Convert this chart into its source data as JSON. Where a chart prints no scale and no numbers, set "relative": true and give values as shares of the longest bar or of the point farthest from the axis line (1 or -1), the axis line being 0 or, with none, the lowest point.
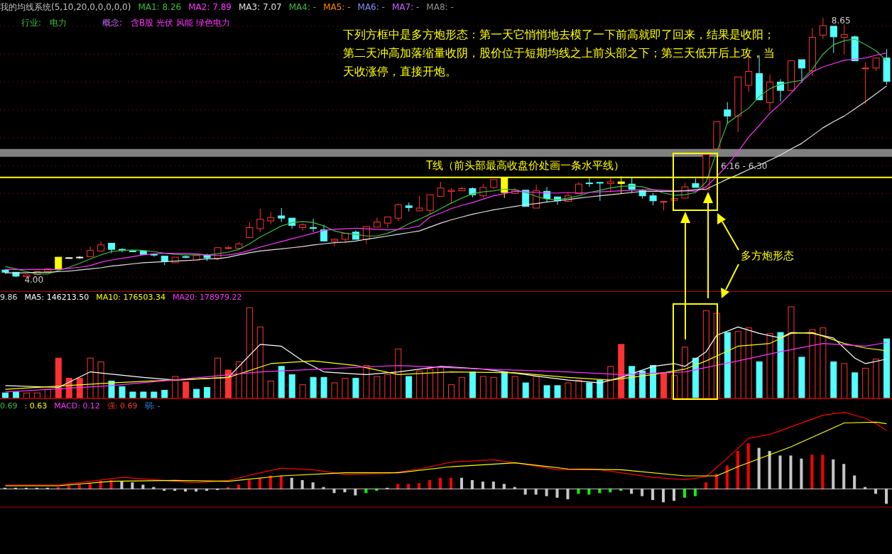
{
  "chart_data": [
    {
      "type": "candlestick",
      "title": "我的均线系统(5,10,20,0,0,0,0,0)",
      "categories": [
        null,
        null,
        null,
        null,
        null,
        null,
        null,
        null,
        null,
        null,
        null,
        null,
        null,
        null,
        null,
        null,
        null,
        null,
        null,
        null,
        null,
        null,
        null,
        null,
        null,
        null,
        null,
        null,
        null,
        null,
        null,
        null,
        null,
        null,
        null,
        null,
        null,
        null,
        null,
        null,
        null,
        null,
        null,
        null,
        null,
        null,
        null,
        null,
        null,
        null,
        null,
        null,
        null,
        null,
        null,
        null,
        null,
        null,
        null,
        null,
        null,
        null,
        null,
        null,
        null,
        null,
        null,
        null,
        null,
        null,
        null,
        null,
        null,
        null,
        null,
        null,
        null,
        null,
        null,
        null,
        null,
        null,
        null,
        null
      ],
      "ohlc": [
        [
          4.13,
          4.14,
          4.06,
          4.09
        ],
        [
          4.09,
          4.09,
          4.0,
          4.02
        ],
        [
          4.01,
          4.05,
          4.0,
          4.04
        ],
        [
          4.05,
          4.11,
          4.04,
          4.1
        ],
        [
          4.1,
          4.16,
          4.09,
          4.15
        ],
        [
          4.36,
          4.36,
          4.14,
          4.14
        ],
        [
          4.35,
          4.36,
          4.34,
          4.35
        ],
        [
          4.36,
          4.38,
          4.33,
          4.36
        ],
        [
          4.37,
          4.55,
          4.37,
          4.48
        ],
        [
          4.47,
          4.64,
          4.47,
          4.58
        ],
        [
          4.61,
          4.61,
          4.43,
          4.5
        ],
        [
          4.5,
          4.52,
          4.45,
          4.48
        ],
        [
          4.47,
          4.48,
          4.45,
          4.46
        ],
        [
          4.47,
          4.47,
          4.4,
          4.41
        ],
        [
          4.41,
          4.43,
          4.37,
          4.4
        ],
        [
          4.38,
          4.38,
          4.22,
          4.28
        ],
        [
          4.26,
          4.36,
          4.26,
          4.36
        ],
        [
          4.37,
          4.39,
          4.34,
          4.36
        ],
        [
          4.31,
          4.39,
          4.31,
          4.39
        ],
        [
          4.4,
          4.42,
          4.29,
          4.35
        ],
        [
          4.34,
          4.53,
          4.31,
          4.53
        ],
        [
          4.53,
          4.56,
          4.5,
          4.53
        ],
        [
          4.52,
          4.63,
          4.52,
          4.6
        ],
        [
          4.71,
          4.99,
          4.71,
          4.89
        ],
        [
          4.87,
          5.23,
          4.81,
          5.04
        ],
        [
          5.01,
          5.17,
          4.95,
          5.07
        ],
        [
          5.1,
          5.24,
          4.99,
          5.06
        ],
        [
          5.06,
          5.06,
          4.87,
          4.93
        ],
        [
          4.89,
          4.97,
          4.84,
          4.94
        ],
        [
          4.89,
          5.05,
          4.81,
          4.88
        ],
        [
          4.85,
          4.94,
          4.65,
          4.65
        ],
        [
          4.65,
          4.7,
          4.56,
          4.68
        ],
        [
          4.68,
          4.79,
          4.62,
          4.79
        ],
        [
          4.81,
          4.84,
          4.68,
          4.68
        ],
        [
          4.68,
          4.91,
          4.6,
          4.91
        ],
        [
          4.9,
          5.07,
          4.9,
          4.99
        ],
        [
          4.97,
          5.08,
          4.89,
          5.08
        ],
        [
          5.06,
          5.32,
          5.01,
          5.3
        ],
        [
          5.28,
          5.34,
          5.18,
          5.25
        ],
        [
          5.19,
          5.46,
          5.19,
          5.24
        ],
        [
          5.2,
          5.48,
          5.13,
          5.48
        ],
        [
          5.45,
          5.71,
          5.45,
          5.6
        ],
        [
          5.54,
          5.6,
          5.32,
          5.56
        ],
        [
          5.55,
          5.62,
          5.55,
          5.59
        ],
        [
          5.59,
          5.61,
          5.43,
          5.48
        ],
        [
          5.46,
          5.67,
          5.43,
          5.61
        ],
        [
          5.61,
          5.75,
          5.58,
          5.75
        ],
        [
          5.79,
          5.8,
          5.42,
          5.52
        ],
        [
          5.5,
          5.6,
          5.5,
          5.56
        ],
        [
          5.56,
          5.56,
          5.27,
          5.27
        ],
        [
          5.24,
          5.66,
          5.24,
          5.55
        ],
        [
          5.54,
          5.62,
          5.34,
          5.41
        ],
        [
          5.44,
          5.44,
          5.3,
          5.37
        ],
        [
          5.36,
          5.5,
          5.36,
          5.46
        ],
        [
          5.5,
          5.7,
          5.5,
          5.67
        ],
        [
          5.69,
          5.78,
          5.62,
          5.68
        ],
        [
          5.7,
          5.7,
          5.37,
          5.69
        ],
        [
          5.68,
          5.78,
          5.52,
          5.71
        ],
        [
          5.71,
          5.81,
          5.5,
          5.68
        ],
        [
          5.67,
          5.78,
          5.51,
          5.58
        ],
        [
          5.55,
          5.58,
          5.41,
          5.46
        ],
        [
          5.46,
          5.51,
          5.29,
          5.37
        ],
        [
          5.36,
          5.36,
          5.2,
          5.36
        ],
        [
          5.38,
          5.42,
          5.37,
          5.41
        ],
        [
          5.42,
          5.69,
          5.42,
          5.62
        ],
        [
          5.68,
          5.77,
          5.61,
          5.61
        ],
        [
          5.57,
          6.2,
          5.56,
          6.2
        ],
        [
          6.3,
          6.79,
          6.3,
          6.79
        ],
        [
          7.0,
          7.14,
          6.75,
          6.89
        ],
        [
          6.89,
          7.59,
          6.6,
          7.59
        ],
        [
          7.44,
          7.97,
          7.32,
          7.69
        ],
        [
          7.65,
          7.98,
          7.18,
          7.18
        ],
        [
          7.13,
          7.64,
          6.98,
          7.5
        ],
        [
          7.5,
          7.55,
          7.15,
          7.35
        ],
        [
          7.35,
          7.89,
          7.33,
          7.88
        ],
        [
          7.9,
          7.9,
          7.48,
          7.75
        ],
        [
          7.7,
          8.47,
          7.61,
          8.3
        ],
        [
          8.34,
          8.65,
          8.27,
          8.51
        ],
        [
          8.5,
          8.5,
          8.02,
          8.31
        ],
        [
          8.3,
          8.53,
          8.0,
          8.35
        ],
        [
          8.31,
          8.33,
          7.88,
          7.88
        ],
        [
          7.74,
          7.85,
          7.1,
          7.75
        ],
        [
          7.75,
          7.93,
          7.7,
          7.93
        ],
        [
          7.93,
          8.09,
          7.45,
          7.51
        ]
      ],
      "colors": [
        "#54ffff",
        "#54ffff",
        "#ff3232",
        "#ff3232",
        "#ff3232",
        "#ffff00",
        "#ffffff",
        "#ffffff",
        "#ff3232",
        "#ff3232",
        "#54ffff",
        "#54ffff",
        "#54ffff",
        "#54ffff",
        "#54ffff",
        "#54ffff",
        "#ff3232",
        "#54ffff",
        "#ff3232",
        "#54ffff",
        "#ff3232",
        "#ff3232",
        "#ff3232",
        "#ff3232",
        "#ff3232",
        "#ff3232",
        "#54ffff",
        "#54ffff",
        "#ff3232",
        "#54ffff",
        "#54ffff",
        "#ff3232",
        "#ff3232",
        "#54ffff",
        "#ff3232",
        "#ff3232",
        "#ff3232",
        "#ff3232",
        "#54ffff",
        "#ff3232",
        "#ff3232",
        "#ff3232",
        "#ff3232",
        "#ff3232",
        "#54ffff",
        "#ff3232",
        "#ff3232",
        "#ffff00",
        "#ff3232",
        "#54ffff",
        "#ff3232",
        "#54ffff",
        "#54ffff",
        "#ff3232",
        "#ff3232",
        "#54ffff",
        "#54ffff",
        "#ff3232",
        "#ffff00",
        "#54ffff",
        "#54ffff",
        "#54ffff",
        "#ff3232",
        "#ff3232",
        "#ff3232",
        "#54ffff",
        "#ff3232",
        "#ff3232",
        "#54ffff",
        "#ff3232",
        "#ff3232",
        "#54ffff",
        "#ff3232",
        "#54ffff",
        "#ff3232",
        "#54ffff",
        "#ff3232",
        "#ff3232",
        "#54ffff",
        "#ff3232",
        "#54ffff",
        "#ff3232",
        "#ff3232",
        "#54ffff"
      ],
      "series": [
        {
          "type": "line",
          "name": "MA1: 8.26",
          "color": "#3cbe3c",
          "values": [
            4.19,
            4.15,
            4.1,
            4.06,
            4.06,
            4.12,
            4.18,
            4.25,
            4.33,
            4.4,
            4.46,
            4.48,
            4.49,
            4.48,
            4.46,
            4.43,
            4.41,
            4.4,
            4.4,
            4.4,
            4.42,
            4.45,
            4.5,
            4.6,
            4.72,
            4.82,
            4.92,
            4.98,
            5.0,
            4.98,
            4.92,
            4.83,
            4.79,
            4.77,
            4.74,
            4.74,
            4.79,
            4.86,
            4.96,
            5.04,
            5.13,
            5.23,
            5.33,
            5.42,
            5.5,
            5.53,
            5.55,
            5.58,
            5.57,
            5.52,
            5.45,
            5.4,
            5.39,
            5.42,
            5.46,
            5.52,
            5.56,
            5.6,
            5.63,
            5.64,
            5.62,
            5.57,
            5.51,
            5.47,
            5.48,
            5.52,
            5.71,
            6.25,
            6.76,
            6.9,
            7.03,
            7.24,
            7.38,
            7.46,
            7.5,
            7.53,
            7.73,
            8.0,
            8.17,
            8.24,
            8.27,
            8.17,
            8.06,
            7.88
          ]
        },
        {
          "type": "line",
          "name": "MA2: 7.89",
          "color": "#ff33ff",
          "values": [
            4.14,
            4.14,
            4.14,
            4.14,
            4.14,
            4.14,
            4.16,
            4.18,
            4.21,
            4.27,
            4.31,
            4.34,
            4.37,
            4.4,
            4.42,
            4.43,
            4.43,
            4.43,
            4.42,
            4.4,
            4.39,
            4.4,
            4.43,
            4.48,
            4.54,
            4.59,
            4.64,
            4.69,
            4.74,
            4.79,
            4.84,
            4.86,
            4.87,
            4.88,
            4.87,
            4.86,
            4.85,
            4.86,
            4.88,
            4.92,
            5.08,
            5.15,
            5.23,
            5.29,
            5.34,
            5.4,
            5.46,
            5.5,
            5.54,
            5.53,
            5.52,
            5.51,
            5.51,
            5.52,
            5.51,
            5.52,
            5.53,
            5.54,
            5.55,
            5.56,
            5.57,
            5.57,
            5.56,
            5.55,
            5.55,
            5.54,
            5.62,
            5.81,
            6.01,
            6.25,
            6.51,
            6.72,
            6.94,
            7.11,
            7.3,
            7.51,
            7.68,
            7.77,
            7.83,
            7.89,
            7.91,
            7.93,
            7.98,
            8.02
          ]
        },
        {
          "type": "line",
          "name": "MA3: 7.07",
          "color": "#e0e0e0",
          "values": [
            4.08,
            4.08,
            4.08,
            4.09,
            4.09,
            4.1,
            4.11,
            4.13,
            4.15,
            4.17,
            4.2,
            4.22,
            4.24,
            4.26,
            4.27,
            4.28,
            4.29,
            4.3,
            4.31,
            4.33,
            4.33,
            4.36,
            4.4,
            4.44,
            4.47,
            4.49,
            4.51,
            4.53,
            4.55,
            4.58,
            4.6,
            4.62,
            4.63,
            4.65,
            4.68,
            4.71,
            4.74,
            4.77,
            4.8,
            4.83,
            4.9,
            4.97,
            5.03,
            5.08,
            5.13,
            5.17,
            5.21,
            5.24,
            5.27,
            5.3,
            5.32,
            5.35,
            5.37,
            5.39,
            5.42,
            5.44,
            5.46,
            5.48,
            5.5,
            5.52,
            5.54,
            5.54,
            5.54,
            5.54,
            5.55,
            5.57,
            5.58,
            5.67,
            5.76,
            5.84,
            5.93,
            6.01,
            6.1,
            6.19,
            6.3,
            6.4,
            6.54,
            6.68,
            6.79,
            6.89,
            7.02,
            7.15,
            7.29,
            7.43
          ]
        }
      ],
      "ylim": [
        3.75,
        8.97
      ],
      "yticks": [
        {
          "value": 4,
          "label": null
        },
        {
          "value": 4.5,
          "label": null
        },
        {
          "value": 5,
          "label": null
        },
        {
          "value": 5.5,
          "label": null
        },
        {
          "value": 6,
          "label": null
        },
        {
          "value": 6.5,
          "label": null
        },
        {
          "value": 7,
          "label": null
        },
        {
          "value": 7.5,
          "label": null
        },
        {
          "value": 8,
          "label": null
        },
        {
          "value": 8.5,
          "label": null
        }
      ],
      "tick_labels": false,
      "grid": "y",
      "legend": "top left",
      "ref_lines": [
        {
          "axis": "y",
          "value": 5.79,
          "label": "T线（前头部最高收盘价处画一条水平线）",
          "color": "#ffff00"
        }
      ],
      "bands": [
        {
          "axis": "y",
          "from": 6.16,
          "to": 6.3,
          "label": "6.16 - 6.30",
          "color": "#808080"
        }
      ],
      "annotations": [
        "MA4: -",
        "MA5: -",
        "MA6: -",
        "MA7: -",
        "MA8: -",
        "行业:",
        "电力",
        "概念:",
        "含B股 光伏 风能 绿色电力",
        "下列方框中是多方炮形态：第一天它悄悄地去模了一下前高就即了回来，结果是收阳；第二天冲高加落缩量收阴，股价位于短期均线之上前头部之下；第三天低开后上攻，当天收涨停，直接开炮。",
        "多方炮形态",
        "8.65",
        "4.00"
      ]
    },
    {
      "type": "bar",
      "relative": true,
      "legend": "top left",
      "categories": [
        null,
        null,
        null,
        null,
        null,
        null,
        null,
        null,
        null,
        null,
        null,
        null,
        null,
        null,
        null,
        null,
        null,
        null,
        null,
        null,
        null,
        null,
        null,
        null,
        null,
        null,
        null,
        null,
        null,
        null,
        null,
        null,
        null,
        null,
        null,
        null,
        null,
        null,
        null,
        null,
        null,
        null,
        null,
        null,
        null,
        null,
        null,
        null,
        null,
        null,
        null,
        null,
        null,
        null,
        null,
        null,
        null,
        null,
        null,
        null,
        null,
        null,
        null,
        null,
        null,
        null,
        null,
        null,
        null,
        null,
        null,
        null,
        null,
        null,
        null,
        null,
        null,
        null,
        null,
        null,
        null,
        null,
        null,
        null
      ],
      "series": [
        {
          "type": "bar",
          "values": [
            0.06,
            0.07,
            0.06,
            0.06,
            0.1,
            0.44,
            0.22,
            0.22,
            0.44,
            0.4,
            0.19,
            0.13,
            0.07,
            0.07,
            0.07,
            0.09,
            0.24,
            0.18,
            0.1,
            0.12,
            0.44,
            0.31,
            0.4,
            0.99,
            0.78,
            0.19,
            0.35,
            0.26,
            0.15,
            0.23,
            0.23,
            0.17,
            0.22,
            0.22,
            0.36,
            0.24,
            0.26,
            0.54,
            0.24,
            0.3,
            0.32,
            0.34,
            0.15,
            0.23,
            0.29,
            0.24,
            0.23,
            0.29,
            0.24,
            0.17,
            0.24,
            0.14,
            0.14,
            0.17,
            0.2,
            0.17,
            0.2,
            0.35,
            0.59,
            0.35,
            0.3,
            0.36,
            0.28,
            0.25,
            0.56,
            0.44,
            0.96,
            0.93,
            0.72,
            0.73,
            0.77,
            0.4,
            0.71,
            0.72,
            1,
            0.45,
            0.75,
            0.77,
            0.4,
            0.38,
            0.28,
            0.33,
            0.43,
            0.65
          ],
          "colors": [
            "#54ffff",
            "#54ffff",
            "#ff3232",
            "#ff3232",
            "#ff3232",
            "#ff3232",
            "#ff3232",
            "#ff3232",
            "#ff3232",
            "#ff3232",
            "#54ffff",
            "#54ffff",
            "#54ffff",
            "#54ffff",
            "#54ffff",
            "#54ffff",
            "#ff3232",
            "#ff3232",
            "#54ffff",
            "#54ffff",
            "#ff3232",
            "#ff3232",
            "#ff3232",
            "#ff3232",
            "#ff3232",
            "#ff3232",
            "#54ffff",
            "#54ffff",
            "#ff3232",
            "#54ffff",
            "#54ffff",
            "#ff3232",
            "#ff3232",
            "#54ffff",
            "#ff3232",
            "#ff3232",
            "#ff3232",
            "#ff3232",
            "#54ffff",
            "#ff3232",
            "#ff3232",
            "#ff3232",
            "#ff3232",
            "#ff3232",
            "#54ffff",
            "#ff3232",
            "#ff3232",
            "#54ffff",
            "#ff3232",
            "#54ffff",
            "#ff3232",
            "#54ffff",
            "#54ffff",
            "#ff3232",
            "#ff3232",
            "#54ffff",
            "#54ffff",
            "#ff3232",
            "#ff3232",
            "#54ffff",
            "#54ffff",
            "#54ffff",
            "#ff3232",
            "#ff3232",
            "#ff3232",
            "#54ffff",
            "#ff3232",
            "#ff3232",
            "#54ffff",
            "#ff3232",
            "#ff3232",
            "#54ffff",
            "#ff3232",
            "#54ffff",
            "#ff3232",
            "#54ffff",
            "#ff3232",
            "#ff3232",
            "#54ffff",
            "#ff3232",
            "#54ffff",
            "#ff3232",
            "#ff3232",
            "#54ffff"
          ]
        },
        {
          "type": "line",
          "name": "MA5: 146213.50",
          "color": "#ffffff",
          "values": [
            0.14,
            null,
            null,
            null,
            null,
            0.12,
            null,
            null,
            0.29,
            null,
            null,
            null,
            null,
            0.23,
            null,
            null,
            0.2,
            null,
            null,
            null,
            null,
            0.23,
            0.35,
            null,
            0.59,
            null,
            0.57,
            null,
            0.41,
            null,
            0.29,
            null,
            null,
            null,
            0.26,
            null,
            null,
            0.29,
            null,
            null,
            null,
            0.35,
            null,
            null,
            null,
            0.32,
            null,
            null,
            null,
            0.26,
            null,
            null,
            null,
            0.2,
            null,
            null,
            0.17,
            null,
            0.23,
            null,
            null,
            0.35,
            null,
            0.38,
            0.35,
            null,
            0.51,
            0.69,
            null,
            0.78,
            null,
            0.71,
            null,
            0.66,
            0.72,
            null,
            0.71,
            null,
            0.66,
            null,
            0.44,
            0.38,
            null,
            0.43
          ]
        },
        {
          "type": "line",
          "name": "MA10: 176503.34",
          "color": "#ffff00",
          "values": [
            0.1,
            null,
            null,
            null,
            null,
            null,
            null,
            null,
            null,
            null,
            0.17,
            null,
            null,
            null,
            null,
            null,
            null,
            null,
            null,
            null,
            null,
            0.23,
            null,
            null,
            null,
            0.38,
            null,
            null,
            null,
            0.41,
            null,
            null,
            null,
            0.36,
            null,
            null,
            null,
            0.26,
            null,
            null,
            null,
            null,
            0.29,
            null,
            null,
            null,
            null,
            null,
            0.28,
            null,
            null,
            null,
            null,
            0.23,
            null,
            null,
            null,
            0.2,
            null,
            null,
            null,
            0.26,
            null,
            null,
            0.32,
            null,
            0.41,
            null,
            null,
            0.57,
            null,
            null,
            0.6,
            null,
            0.71,
            null,
            0.72,
            null,
            null,
            0.6,
            null,
            0.55,
            null,
            0.52
          ]
        },
        {
          "type": "line",
          "name": "MA20: 178979.22",
          "color": "#ff33ff",
          "values": [
            0.07,
            null,
            null,
            null,
            null,
            null,
            null,
            null,
            null,
            null,
            0.14,
            null,
            null,
            null,
            null,
            null,
            null,
            null,
            null,
            null,
            null,
            null,
            null,
            null,
            0.29,
            null,
            null,
            null,
            null,
            null,
            null,
            null,
            null,
            null,
            null,
            null,
            null,
            0.36,
            null,
            null,
            null,
            null,
            null,
            null,
            null,
            0.32,
            null,
            null,
            null,
            null,
            null,
            null,
            null,
            0.29,
            null,
            null,
            null,
            null,
            0.26,
            null,
            null,
            null,
            null,
            null,
            0.29,
            null,
            null,
            null,
            null,
            0.41,
            null,
            null,
            null,
            0.51,
            null,
            null,
            null,
            0.6,
            null,
            null,
            null,
            0.57,
            null,
            0.61
          ]
        }
      ],
      "annotations": [
        "9.86"
      ]
    },
    {
      "type": "bar",
      "relative": true,
      "categories": [
        null,
        null,
        null,
        null,
        null,
        null,
        null,
        null,
        null,
        null,
        null,
        null,
        null,
        null,
        null,
        null,
        null,
        null,
        null,
        null,
        null,
        null,
        null,
        null,
        null,
        null,
        null,
        null,
        null,
        null,
        null,
        null,
        null,
        null,
        null,
        null,
        null,
        null,
        null,
        null,
        null,
        null,
        null,
        null,
        null,
        null,
        null,
        null,
        null,
        null,
        null,
        null,
        null,
        null,
        null,
        null,
        null,
        null,
        null,
        null,
        null,
        null,
        null,
        null,
        null,
        null,
        null,
        null,
        null,
        null,
        null,
        null,
        null,
        null,
        null,
        null,
        null,
        null,
        null,
        null,
        null,
        null,
        null,
        null
      ],
      "series": [
        {
          "type": "bar",
          "values": [
            0.01,
            0.01,
            0.01,
            0.01,
            0.01,
            0.02,
            0.04,
            0.05,
            0.07,
            0.1,
            0.11,
            0.09,
            0.08,
            0.05,
            0.02,
            -0.02,
            -0.02,
            -0.03,
            -0.03,
            -0.02,
            -0.01,
            0.02,
            0.05,
            0.11,
            0.14,
            0.17,
            0.17,
            0.14,
            0.11,
            0.08,
            0.02,
            -0.05,
            -0.04,
            -0.08,
            -0.05,
            -0.02,
            0.01,
            0.06,
            0.06,
            0.07,
            0.11,
            0.14,
            0.14,
            0.14,
            0.11,
            0.09,
            0.09,
            0.06,
            0.02,
            -0.07,
            -0.07,
            -0.09,
            -0.11,
            -0.13,
            -0.06,
            -0.07,
            -0.05,
            -0.04,
            -0.02,
            -0.06,
            -0.09,
            -0.14,
            -0.17,
            -0.15,
            -0.11,
            -0.09,
            0.08,
            0.19,
            0.3,
            0.49,
            0.59,
            0.53,
            0.49,
            0.43,
            0.43,
            0.39,
            0.44,
            0.44,
            0.38,
            0.32,
            0.17,
            0.02,
            -0.06,
            -0.19
          ],
          "colors": [
            "#c8c8c8",
            "#c8c8c8",
            "#c8c8c8",
            "#c8c8c8",
            "#c8c8c8",
            "#ff0000",
            "#ff0000",
            "#ff0000",
            "#ff0000",
            "#ff0000",
            "#ff0000",
            "#c8c8c8",
            "#c8c8c8",
            "#c8c8c8",
            "#c8c8c8",
            "#c8c8c8",
            "#c8c8c8",
            "#c8c8c8",
            "#c8c8c8",
            "#c8c8c8",
            "#c8c8c8",
            "#ff0000",
            "#ff0000",
            "#ff0000",
            "#ff0000",
            "#ff0000",
            "#ff0000",
            "#c8c8c8",
            "#c8c8c8",
            "#c8c8c8",
            "#c8c8c8",
            "#c8c8c8",
            "#c8c8c8",
            "#c8c8c8",
            "#00ff00",
            "#00ff00",
            "#c8c8c8",
            "#ff0000",
            "#ff0000",
            "#ff0000",
            "#ff0000",
            "#ff0000",
            "#ff0000",
            "#c8c8c8",
            "#c8c8c8",
            "#c8c8c8",
            "#c8c8c8",
            "#c8c8c8",
            "#c8c8c8",
            "#c8c8c8",
            "#c8c8c8",
            "#c8c8c8",
            "#c8c8c8",
            "#c8c8c8",
            "#00ff00",
            "#00ff00",
            "#00ff00",
            "#00ff00",
            "#00ff00",
            "#c8c8c8",
            "#c8c8c8",
            "#c8c8c8",
            "#c8c8c8",
            "#c8c8c8",
            "#00ff00",
            "#00ff00",
            "#ff0000",
            "#ff0000",
            "#ff0000",
            "#ff0000",
            "#ff0000",
            "#c8c8c8",
            "#c8c8c8",
            "#c8c8c8",
            "#c8c8c8",
            "#c8c8c8",
            "#ff0000",
            "#ff0000",
            "#c8c8c8",
            "#c8c8c8",
            "#c8c8c8",
            "#c8c8c8",
            "#c8c8c8",
            "#c8c8c8"
          ]
        },
        {
          "type": "line",
          "color": "#ff0000",
          "values": [
            0.05,
            null,
            null,
            null,
            null,
            0.05,
            null,
            null,
            0.1,
            null,
            null,
            0.15,
            null,
            null,
            null,
            0.11,
            null,
            null,
            0.08,
            null,
            null,
            0.11,
            null,
            null,
            0.21,
            null,
            0.27,
            null,
            null,
            0.25,
            null,
            null,
            0.19,
            null,
            null,
            null,
            0.2,
            null,
            null,
            0.26,
            null,
            null,
            0.35,
            null,
            null,
            null,
            0.38,
            null,
            null,
            0.32,
            null,
            null,
            0.25,
            null,
            null,
            null,
            0.25,
            null,
            0.21,
            null,
            null,
            0.15,
            null,
            null,
            0.12,
            null,
            0.16,
            null,
            0.4,
            null,
            0.66,
            null,
            0.71,
            null,
            0.81,
            null,
            null,
            0.96,
            null,
            1,
            null,
            0.92,
            0.85,
            0.76
          ]
        },
        {
          "type": "line",
          "color": "#ffff00",
          "values": [
            0.04,
            null,
            null,
            null,
            null,
            0.04,
            null,
            null,
            null,
            null,
            0.1,
            null,
            null,
            null,
            null,
            null,
            0.11,
            null,
            null,
            null,
            null,
            0.1,
            null,
            null,
            null,
            null,
            0.17,
            null,
            null,
            null,
            null,
            null,
            0.21,
            null,
            null,
            null,
            null,
            0.21,
            null,
            null,
            null,
            null,
            0.29,
            null,
            null,
            null,
            null,
            null,
            0.34,
            null,
            null,
            null,
            null,
            0.26,
            null,
            null,
            null,
            null,
            0.25,
            null,
            null,
            null,
            null,
            null,
            0.17,
            null,
            null,
            0.17,
            null,
            0.29,
            null,
            null,
            null,
            null,
            0.55,
            null,
            null,
            null,
            null,
            0.86,
            null,
            null,
            0.87,
            0.85
          ]
        }
      ],
      "annotations": [
        "0.69",
        ": 0.63",
        "MACD: 0.12",
        "强: 0.69",
        "弱: -"
      ]
    }
  ]
}
